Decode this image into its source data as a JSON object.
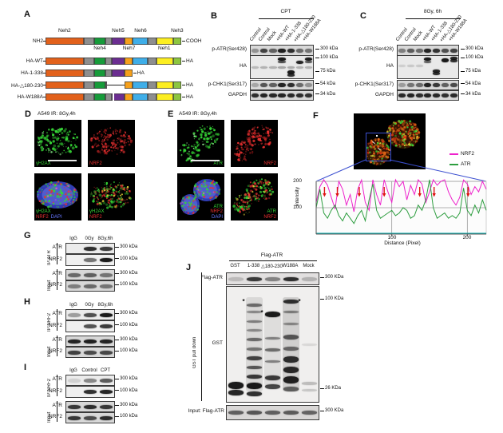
{
  "colors": {
    "neh2": "#E2611B",
    "linker": "#8E8E8E",
    "neh4": "#169B3A",
    "neh5": "#6B2E91",
    "neh7": "#F6A01B",
    "neh6": "#3FAEE8",
    "neh1": "#FCEE21",
    "neh3": "#8DC63F",
    "nrf2_trace": "#EE22CC",
    "atr_trace": "#2E9E40",
    "baseline": "#00AAAA",
    "arrow_red": "#DD1111",
    "green_ch": "#35D535",
    "red_ch": "#E83030",
    "blue_ch": "#6677FF",
    "yellow_ch": "#D8C832",
    "orange_ch": "#E06515",
    "roi_blue": "#3B4FD0"
  },
  "panelA": {
    "label": "A",
    "top_labels": [
      {
        "t": "Neh2",
        "f": 0.14
      },
      {
        "t": "Neh5",
        "f": 0.535
      },
      {
        "t": "Neh6",
        "f": 0.7
      },
      {
        "t": "Neh3",
        "f": 0.97
      }
    ],
    "bottom_labels": [
      {
        "t": "Neh4",
        "f": 0.4
      },
      {
        "t": "Neh7",
        "f": 0.615
      },
      {
        "t": "Neh1",
        "f": 0.875
      }
    ],
    "segments": [
      {
        "c": "neh2",
        "a": 0,
        "b": 0.28
      },
      {
        "c": "linker",
        "a": 0.28,
        "b": 0.36
      },
      {
        "c": "neh4",
        "a": 0.36,
        "b": 0.44
      },
      {
        "c": "linker",
        "a": 0.44,
        "b": 0.49
      },
      {
        "c": "neh5",
        "a": 0.49,
        "b": 0.58
      },
      {
        "c": "neh7",
        "a": 0.58,
        "b": 0.64
      },
      {
        "c": "neh6",
        "a": 0.64,
        "b": 0.755
      },
      {
        "c": "linker",
        "a": 0.755,
        "b": 0.815
      },
      {
        "c": "neh1",
        "a": 0.815,
        "b": 0.94
      },
      {
        "c": "neh3",
        "a": 0.94,
        "b": 1
      }
    ],
    "constructs": [
      {
        "left": "NH2",
        "right": "COOH",
        "type": "full"
      },
      {
        "left": "HA-WT",
        "right": "HA",
        "type": "full"
      },
      {
        "left": "HA-1-338",
        "right": "HA",
        "type": "trunc",
        "end": 0.64
      },
      {
        "left": "HA-△180-230",
        "right": "HA",
        "type": "gap",
        "g1": 0.455,
        "g2": 0.58
      },
      {
        "left": "HA-W188A",
        "right": "HA",
        "type": "full",
        "tick": 0.495
      }
    ]
  },
  "panelB": {
    "label": "B",
    "treatment": "CPT",
    "lanes": [
      "Control",
      "Control",
      "Mock",
      "+HA-WT",
      "+HA-1-338",
      "+HA-△180-230",
      "+HA-W188A"
    ],
    "rows": {
      "patr": {
        "label": "p-ATR(Ser428)",
        "marker": "300 kDa",
        "bands": [
          0.35,
          0.75,
          0.6,
          0.92,
          0.85,
          0.55,
          0.5
        ]
      },
      "ha": {
        "label": "HA",
        "marker_top": "100 kDa",
        "marker_bottom": "75 kDa",
        "spots": [
          {
            "l": 3,
            "y": 0.15,
            "i": 0.95,
            "h": 4
          },
          {
            "l": 3,
            "y": 0.28,
            "i": 0.7,
            "h": 3
          },
          {
            "l": 6,
            "y": 0.15,
            "i": 0.92,
            "h": 4
          },
          {
            "l": 6,
            "y": 0.28,
            "i": 0.65,
            "h": 3
          },
          {
            "l": 5,
            "y": 0.3,
            "i": 0.9,
            "h": 4
          },
          {
            "l": 0,
            "y": 0.5,
            "i": 0.22,
            "h": 3
          },
          {
            "l": 1,
            "y": 0.5,
            "i": 0.25,
            "h": 3
          },
          {
            "l": 2,
            "y": 0.5,
            "i": 0.25,
            "h": 3
          },
          {
            "l": 3,
            "y": 0.5,
            "i": 0.3,
            "h": 3
          },
          {
            "l": 4,
            "y": 0.5,
            "i": 0.28,
            "h": 3
          },
          {
            "l": 5,
            "y": 0.5,
            "i": 0.25,
            "h": 3
          },
          {
            "l": 6,
            "y": 0.5,
            "i": 0.25,
            "h": 3
          },
          {
            "l": 4,
            "y": 0.72,
            "i": 0.95,
            "h": 5
          },
          {
            "l": 4,
            "y": 0.84,
            "i": 0.85,
            "h": 4
          }
        ]
      },
      "pchk1": {
        "label": "p-CHK1(Ser317)",
        "marker": "54 kDa",
        "bands": [
          0.25,
          0.65,
          0.6,
          0.9,
          0.85,
          0.55,
          0.35
        ]
      },
      "gapdh": {
        "label": "GAPDH",
        "marker": "34 kDa",
        "bands": [
          0.85,
          0.9,
          0.88,
          0.9,
          0.87,
          0.86,
          0.82
        ]
      }
    }
  },
  "panelC": {
    "label": "C",
    "treatment": "8Gy, 6h",
    "lanes": [
      "Control",
      "Control",
      "Mock",
      "+HA-WT",
      "+HA-1-338",
      "+HA-△180-230",
      "+HA-W188A"
    ],
    "rows": {
      "patr": {
        "label": "p-ATR(Ser428)",
        "marker": "300 kDa",
        "bands": [
          0.45,
          0.62,
          0.55,
          0.9,
          0.82,
          0.68,
          0.75
        ]
      },
      "ha": {
        "label": "HA",
        "marker_top": "100 kDa",
        "marker_bottom": "75 kDa",
        "spots": [
          {
            "l": 3,
            "y": 0.15,
            "i": 0.95,
            "h": 4
          },
          {
            "l": 3,
            "y": 0.27,
            "i": 0.6,
            "h": 3
          },
          {
            "l": 5,
            "y": 0.2,
            "i": 0.95,
            "h": 5
          },
          {
            "l": 6,
            "y": 0.12,
            "i": 0.9,
            "h": 4
          },
          {
            "l": 6,
            "y": 0.23,
            "i": 0.85,
            "h": 4
          },
          {
            "l": 4,
            "y": 0.68,
            "i": 0.9,
            "h": 4
          },
          {
            "l": 4,
            "y": 0.8,
            "i": 0.85,
            "h": 4
          },
          {
            "l": 0,
            "y": 0.45,
            "i": 0.12,
            "h": 3
          },
          {
            "l": 1,
            "y": 0.45,
            "i": 0.15,
            "h": 3
          },
          {
            "l": 2,
            "y": 0.45,
            "i": 0.15,
            "h": 3
          }
        ]
      },
      "pchk1": {
        "label": "p-CHK1(Ser317)",
        "marker": "54 kDa",
        "bands": [
          0.3,
          0.5,
          0.55,
          0.9,
          0.8,
          0.6,
          0.7
        ]
      },
      "gapdh": {
        "label": "GAPDH",
        "marker": "34 kDa",
        "bands": [
          0.88,
          0.9,
          0.86,
          0.9,
          0.88,
          0.85,
          0.87
        ]
      }
    }
  },
  "panelD": {
    "label": "D",
    "title": "A549  IR: 8Gy,4h",
    "images": [
      {
        "lines": [
          [
            {
              "t": "γH2AX",
              "c": "#35D535"
            }
          ]
        ],
        "pos": "bl",
        "scalebar": true
      },
      {
        "lines": [
          [
            {
              "t": "NRF2",
              "c": "#E83030"
            }
          ]
        ],
        "pos": "bl"
      },
      {
        "lines": [
          [
            {
              "t": "γH2AX",
              "c": "#35D535"
            }
          ],
          [
            {
              "t": "NRF2",
              "c": "#E83030"
            },
            {
              "t": "DAPI",
              "c": "#6677FF"
            }
          ]
        ],
        "pos": "bl"
      },
      {
        "lines": [
          [
            {
              "t": "γH2AX",
              "c": "#35D535"
            }
          ],
          [
            {
              "t": "NRF2",
              "c": "#E83030"
            }
          ]
        ],
        "pos": "bl"
      }
    ]
  },
  "panelE": {
    "label": "E",
    "title": "A549  IR: 8Gy,4h",
    "images": [
      {
        "lines": [
          [
            {
              "t": "ATR",
              "c": "#35D535"
            }
          ]
        ],
        "pos": "br",
        "scalebar": true
      },
      {
        "lines": [
          [
            {
              "t": "NRF2",
              "c": "#E83030"
            }
          ]
        ],
        "pos": "br"
      },
      {
        "lines": [
          [
            {
              "t": "ATR",
              "c": "#35D535"
            }
          ],
          [
            {
              "t": "NRF2",
              "c": "#E83030"
            }
          ],
          [
            {
              "t": "DAPI",
              "c": "#6677FF"
            }
          ]
        ],
        "pos": "br"
      },
      {
        "lines": [
          [
            {
              "t": "ATR",
              "c": "#35D535"
            }
          ],
          [
            {
              "t": "NRF2",
              "c": "#E83030"
            }
          ]
        ],
        "pos": "br"
      }
    ]
  },
  "panelF": {
    "label": "F",
    "legend": [
      {
        "t": "NRF2",
        "c": "#EE22CC"
      },
      {
        "t": "ATR",
        "c": "#2E9E40"
      }
    ],
    "xlabel": "Distance (Pixel)",
    "ylabel": "Intensity",
    "xticks": [
      "100",
      "200"
    ],
    "yticks": [
      "200",
      "100"
    ]
  },
  "panelG": {
    "label": "G",
    "ip": "IP:ATR",
    "input": "Input",
    "lanes": [
      "IgG",
      "0Gy",
      "8Gy,6h"
    ],
    "rows": {
      "ip_atr": {
        "label": "ATR",
        "marker": "300 kDa",
        "bands": [
          0,
          0.85,
          0.8
        ]
      },
      "ip_nrf2": {
        "label": "NRF2",
        "marker": "100 kDa",
        "bands": [
          0,
          0.55,
          0.95
        ]
      },
      "in_atr": {
        "label": "ATR",
        "marker": "300 kDa",
        "bands": [
          0.55,
          0.6,
          0.5
        ]
      },
      "in_nrf2": {
        "label": "NRF2",
        "marker": "100 kDa",
        "bands": [
          0.45,
          0.55,
          0.5
        ]
      }
    }
  },
  "panelH": {
    "label": "H",
    "ip": "IP:NRF2",
    "input": "Input",
    "lanes": [
      "IgG",
      "0Gy",
      "8Gy,6h"
    ],
    "rows": {
      "ip_atr": {
        "label": "ATR",
        "marker": "300 kDa",
        "bands": [
          0.35,
          0.7,
          0.95
        ]
      },
      "ip_nrf2": {
        "label": "NRF2",
        "marker": "100 kDa",
        "bands": [
          0,
          0.7,
          0.8
        ]
      },
      "in_atr": {
        "label": "ATR",
        "marker": "300 kDa",
        "bands": [
          0.9,
          0.92,
          0.9
        ]
      },
      "in_nrf2": {
        "label": "NRF2",
        "marker": "100 kDa",
        "bands": [
          0.75,
          0.7,
          0.72
        ]
      }
    }
  },
  "panelI": {
    "label": "I",
    "ip": "IP:NRF2",
    "input": "Input",
    "lanes": [
      "IgG",
      "Control",
      "CPT"
    ],
    "rows": {
      "ip_atr": {
        "label": "ATR",
        "marker": "300 kDa",
        "bands": [
          0.12,
          0.45,
          0.65
        ]
      },
      "ip_nrf2": {
        "label": "NRF2",
        "marker": "100 kDa",
        "bands": [
          0,
          0.85,
          0.9
        ]
      },
      "in_atr": {
        "label": "ATR",
        "marker": "300 kDa",
        "bands": [
          0.8,
          0.85,
          0.8
        ]
      },
      "in_nrf2": {
        "label": "NRF2",
        "marker": "100 kDa",
        "bands": [
          0.8,
          0.7,
          0.85
        ]
      }
    }
  },
  "panelJ": {
    "label": "J",
    "header": "Flag-ATR",
    "pulldown": "GST pull down",
    "asterisk": "*",
    "lanes": [
      "GST",
      "1-338",
      "△180-230",
      "W188A",
      "Mock"
    ],
    "rows": {
      "flag": {
        "label": "Flag-ATR",
        "marker": "300 KDa",
        "bands": [
          0.18,
          0.8,
          0.45,
          0.85,
          0.22
        ]
      },
      "gst": {
        "label": "GST",
        "marker_top": "100 KDa",
        "marker_bottom": "26 KDa",
        "spots": [
          {
            "l": 0,
            "y": 0.86,
            "i": 0.95,
            "h": 9
          },
          {
            "l": 0,
            "y": 0.92,
            "i": 0.9,
            "h": 7
          },
          {
            "l": 1,
            "y": 0.5,
            "i": 0.1,
            "h": 118,
            "smear": true
          },
          {
            "l": 1,
            "y": 0.16,
            "i": 0.55,
            "h": 4
          },
          {
            "l": 1,
            "y": 0.22,
            "i": 0.4,
            "h": 3
          },
          {
            "l": 1,
            "y": 0.3,
            "i": 0.45,
            "h": 3
          },
          {
            "l": 1,
            "y": 0.38,
            "i": 0.4,
            "h": 3
          },
          {
            "l": 1,
            "y": 0.46,
            "i": 0.55,
            "h": 4
          },
          {
            "l": 1,
            "y": 0.54,
            "i": 0.5,
            "h": 4
          },
          {
            "l": 1,
            "y": 0.62,
            "i": 0.75,
            "h": 5
          },
          {
            "l": 1,
            "y": 0.7,
            "i": 0.65,
            "h": 4
          },
          {
            "l": 1,
            "y": 0.78,
            "i": 0.8,
            "h": 5
          },
          {
            "l": 1,
            "y": 0.86,
            "i": 0.95,
            "h": 8
          },
          {
            "l": 1,
            "y": 0.93,
            "i": 0.85,
            "h": 6
          },
          {
            "l": 2,
            "y": 0.55,
            "i": 0.08,
            "h": 90,
            "smear": true
          },
          {
            "l": 2,
            "y": 0.24,
            "i": 0.95,
            "h": 7
          },
          {
            "l": 2,
            "y": 0.45,
            "i": 0.45,
            "h": 3
          },
          {
            "l": 2,
            "y": 0.55,
            "i": 0.55,
            "h": 4
          },
          {
            "l": 2,
            "y": 0.65,
            "i": 0.45,
            "h": 3
          },
          {
            "l": 2,
            "y": 0.79,
            "i": 0.8,
            "h": 6
          },
          {
            "l": 2,
            "y": 0.87,
            "i": 0.75,
            "h": 6
          },
          {
            "l": 3,
            "y": 0.5,
            "i": 0.14,
            "h": 118,
            "smear": true
          },
          {
            "l": 3,
            "y": 0.13,
            "i": 0.85,
            "h": 5
          },
          {
            "l": 3,
            "y": 0.22,
            "i": 0.45,
            "h": 3
          },
          {
            "l": 3,
            "y": 0.32,
            "i": 0.4,
            "h": 3
          },
          {
            "l": 3,
            "y": 0.44,
            "i": 0.65,
            "h": 6
          },
          {
            "l": 3,
            "y": 0.54,
            "i": 0.55,
            "h": 5
          },
          {
            "l": 3,
            "y": 0.63,
            "i": 0.85,
            "h": 8
          },
          {
            "l": 3,
            "y": 0.72,
            "i": 0.88,
            "h": 8
          },
          {
            "l": 3,
            "y": 0.81,
            "i": 0.92,
            "h": 9
          },
          {
            "l": 3,
            "y": 0.89,
            "i": 0.6,
            "h": 6
          },
          {
            "l": 4,
            "y": 0.5,
            "i": 0.1,
            "h": 3
          },
          {
            "l": 4,
            "y": 0.84,
            "i": 0.22,
            "h": 4
          },
          {
            "l": 4,
            "y": 0.9,
            "i": 0.18,
            "h": 3
          }
        ],
        "asterisks": [
          {
            "l": 1,
            "y": 0.13,
            "side": "left"
          },
          {
            "l": 2,
            "y": 0.23,
            "side": "left"
          },
          {
            "l": 3,
            "y": 0.13,
            "side": "right"
          }
        ]
      },
      "input": {
        "label": "Input: Flag-ATR",
        "marker": "300 KDa",
        "bands": [
          0.6,
          0.65,
          0.6,
          0.62,
          0.58
        ]
      }
    }
  },
  "chart_data": {
    "type": "line",
    "xlabel": "Distance (Pixel)",
    "ylabel": "Intensity",
    "xlim": [
      0,
      225
    ],
    "ylim": [
      0,
      210
    ],
    "xticks": [
      100,
      200
    ],
    "yticks": [
      100,
      200
    ],
    "grid": true,
    "legend_position": "top-right",
    "x": [
      0,
      5,
      10,
      15,
      20,
      25,
      30,
      35,
      40,
      45,
      50,
      55,
      60,
      65,
      70,
      75,
      80,
      85,
      90,
      95,
      100,
      105,
      110,
      115,
      120,
      125,
      130,
      135,
      140,
      145,
      150,
      155,
      160,
      165,
      170,
      175,
      180,
      185,
      190,
      195,
      200,
      205,
      210,
      215,
      220,
      225
    ],
    "series": [
      {
        "name": "NRF2",
        "color": "#EE22CC",
        "values": [
          120,
          180,
          210,
          185,
          140,
          95,
          200,
          170,
          110,
          150,
          85,
          170,
          205,
          120,
          90,
          230,
          150,
          110,
          215,
          160,
          120,
          225,
          180,
          200,
          130,
          185,
          150,
          215,
          190,
          120,
          160,
          235,
          185,
          200,
          210,
          160,
          130,
          110,
          140,
          205,
          190,
          150,
          180,
          160,
          200,
          170
        ]
      },
      {
        "name": "ATR",
        "color": "#2E9E40",
        "values": [
          100,
          170,
          80,
          60,
          90,
          110,
          70,
          50,
          80,
          60,
          40,
          70,
          90,
          50,
          130,
          190,
          90,
          60,
          70,
          80,
          90,
          70,
          80,
          100,
          90,
          60,
          70,
          110,
          90,
          130,
          225,
          100,
          60,
          70,
          80,
          60,
          70,
          60,
          80,
          175,
          90,
          70,
          110,
          80,
          130,
          90
        ]
      }
    ],
    "arrows_x": [
      11,
      28,
      57,
      90,
      137,
      156,
      201
    ]
  }
}
